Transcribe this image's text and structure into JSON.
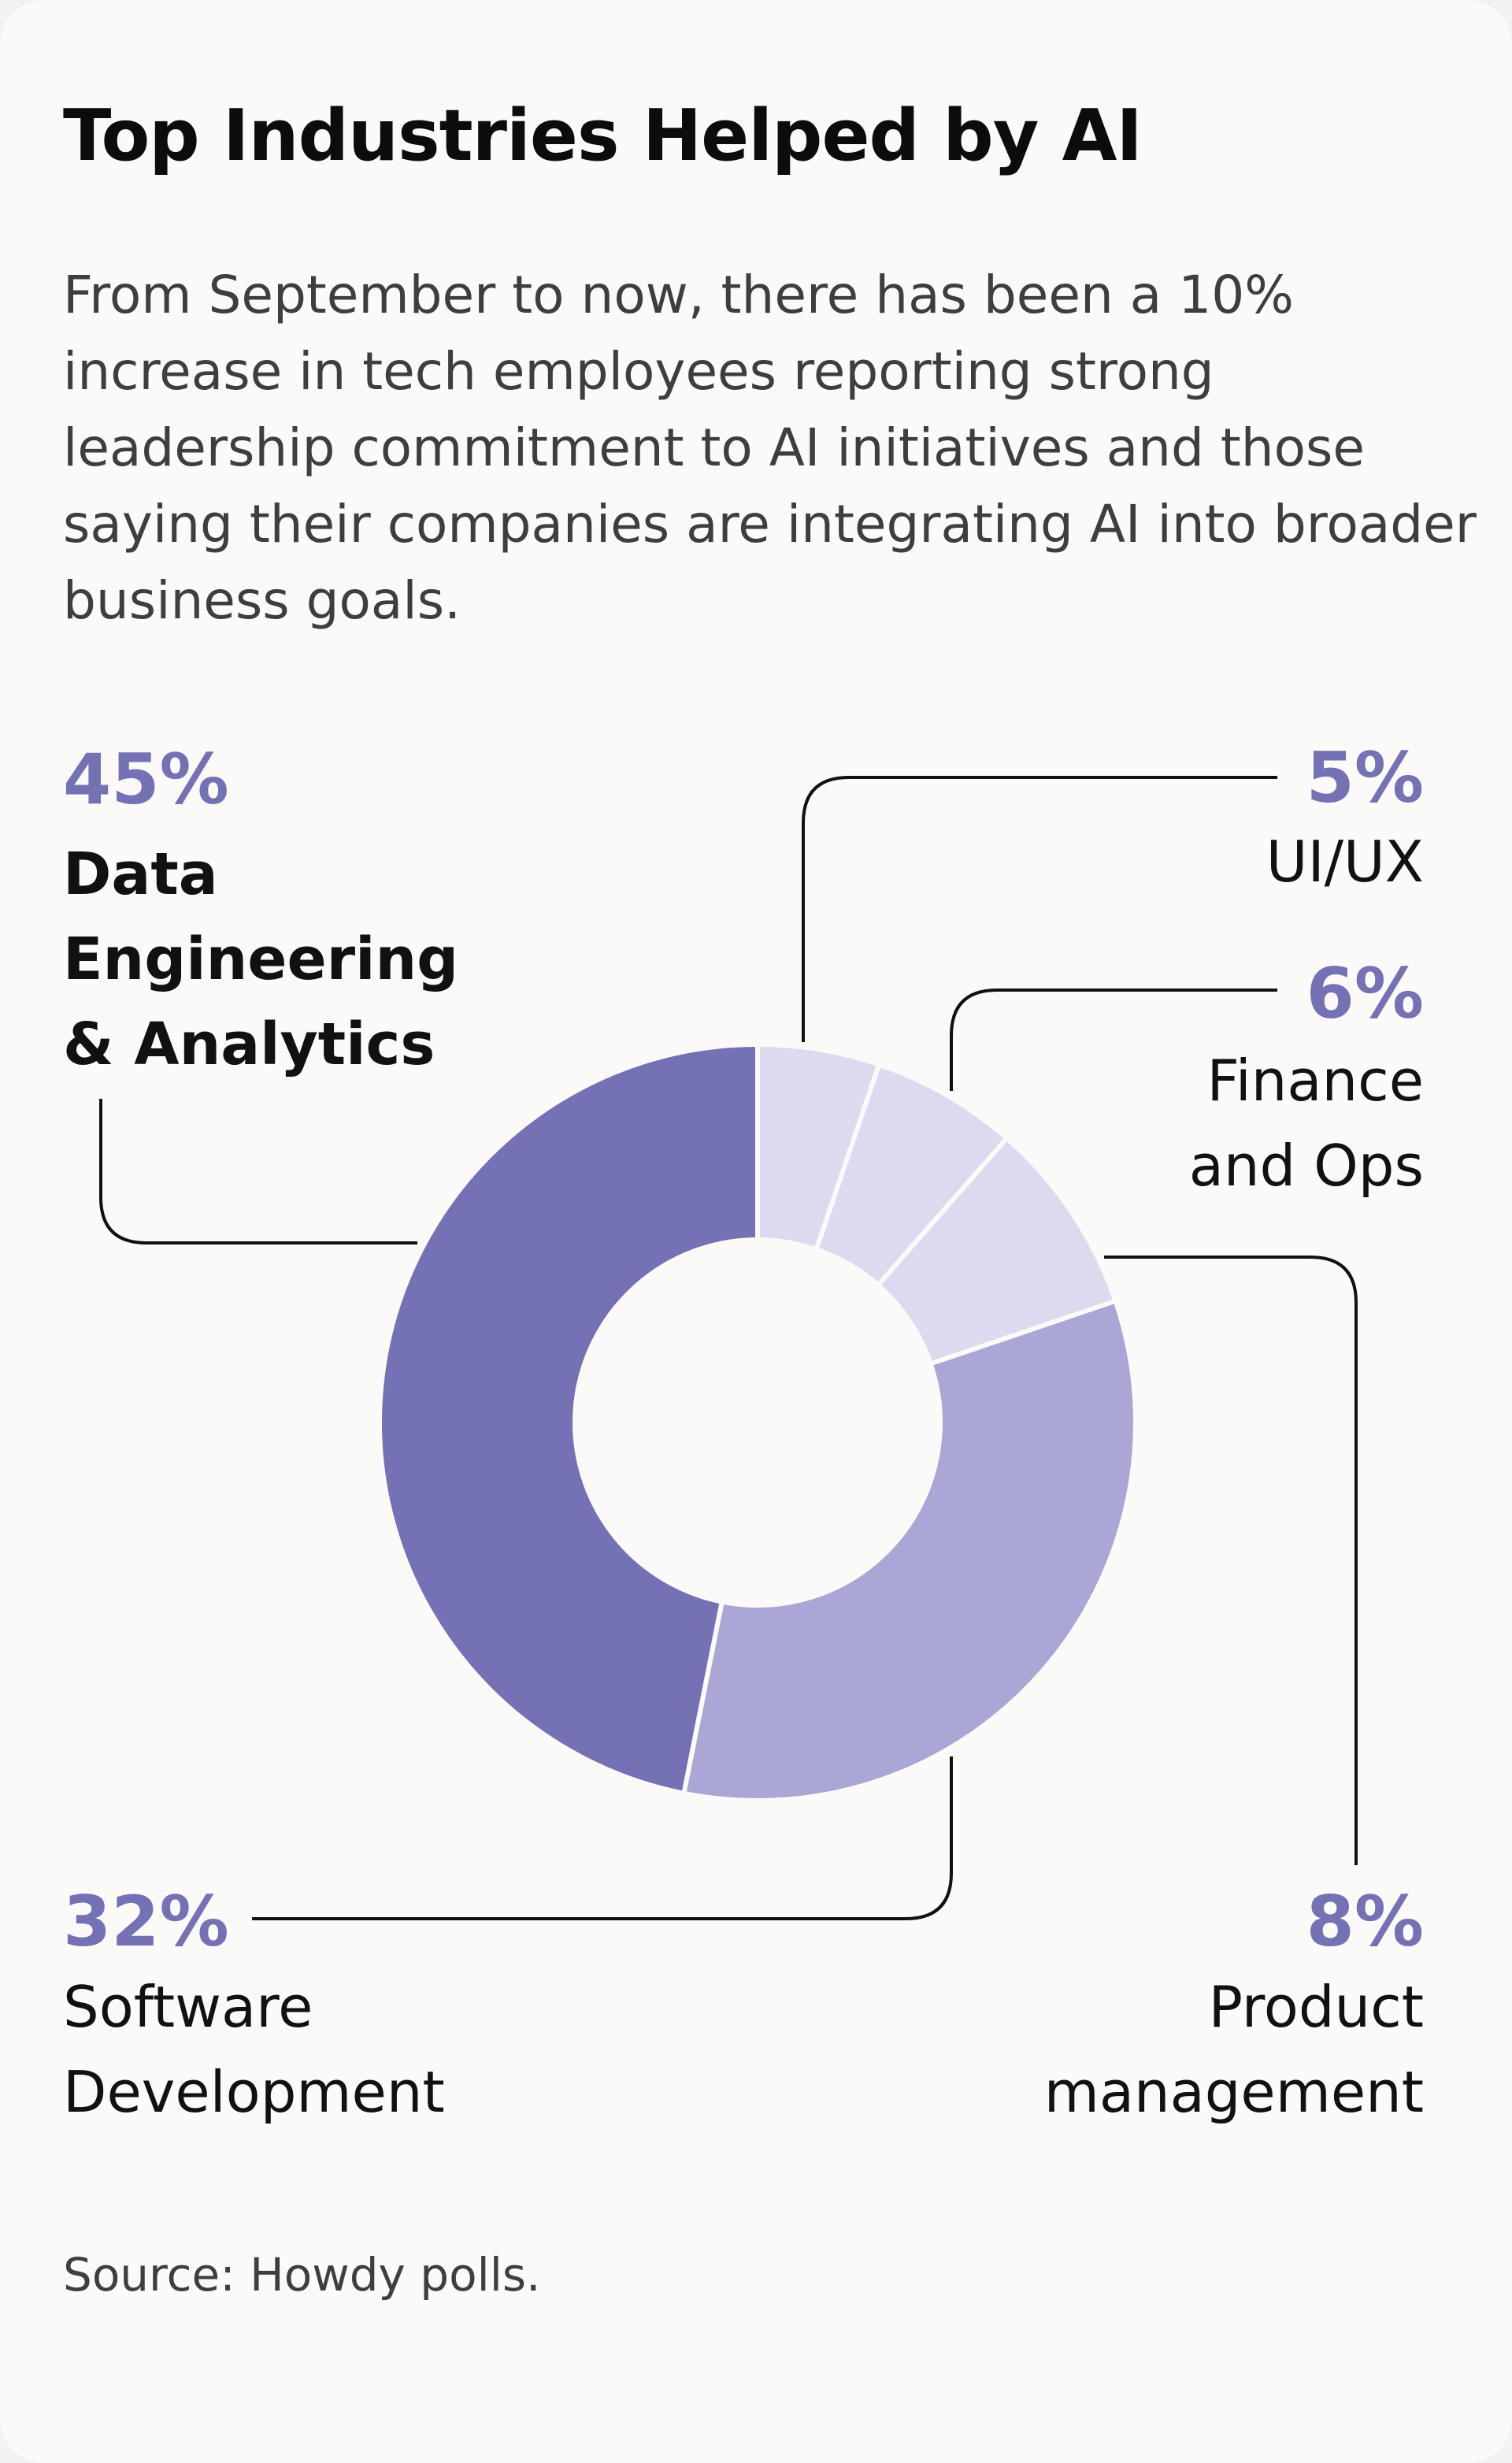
{
  "title": "Top Industries Helped by AI",
  "subtitle": "From September to now, there has been a 10% increase in tech employees reporting strong leadership commitment to AI initiatives and those saying their companies are integrating AI into broader business goals.",
  "source": "Source: Howdy polls.",
  "colors": {
    "background": "#fcfaf8",
    "accent": "#7472b4",
    "data_engineering": "#7472b4",
    "software_development": "#aaa6d5",
    "small_slices": "#dcdaee",
    "leader_line": "#111111"
  },
  "chart_data": {
    "type": "pie",
    "variant": "donut",
    "title": "Top Industries Helped by AI",
    "unit": "%",
    "slices": [
      {
        "label": "UI/UX",
        "value": 5,
        "display": "5%"
      },
      {
        "label": "Finance and Ops",
        "value": 6,
        "display": "6%"
      },
      {
        "label": "Product management",
        "value": 8,
        "display": "8%"
      },
      {
        "label": "Software Development",
        "value": 32,
        "display": "32%"
      },
      {
        "label": "Data Engineering & Analytics",
        "value": 45,
        "display": "45%"
      }
    ],
    "labels": {
      "data_engineering": {
        "pct": "45%",
        "lines": [
          "Data",
          "Engineering",
          "& Analytics"
        ]
      },
      "ui_ux": {
        "pct": "5%",
        "lines": [
          "UI/UX"
        ]
      },
      "finance": {
        "pct": "6%",
        "lines": [
          "Finance",
          "and Ops"
        ]
      },
      "product": {
        "pct": "8%",
        "lines": [
          "Product",
          "management"
        ]
      },
      "software": {
        "pct": "32%",
        "lines": [
          "Software",
          "Development"
        ]
      }
    }
  }
}
